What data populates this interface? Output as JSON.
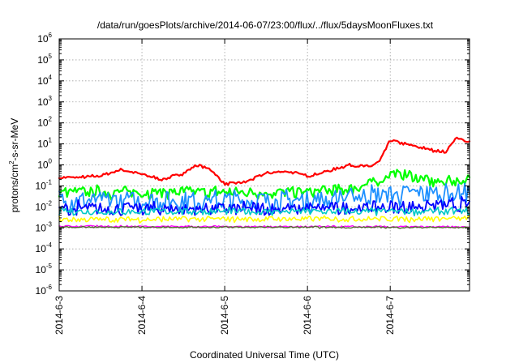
{
  "chart_data": {
    "type": "line",
    "title": "/data/run/goesPlots/archive/2014-06-07/23:00/flux/../flux/5daysMoonFluxes.txt",
    "xlabel": "Coordinated Universal Time (UTC)",
    "ylabel": "protons/cm²-s-sr-MeV",
    "ylabel_parts": {
      "base": "protons/cm",
      "sup": "2",
      "rest": "-s-sr-MeV"
    },
    "x_scale": "time",
    "xlim": [
      "2014-06-03T00:00",
      "2014-06-07T23:00"
    ],
    "x_ticks": [
      "2014-6-3",
      "2014-6-4",
      "2014-6-5",
      "2014-6-6",
      "2014-6-7"
    ],
    "y_scale": "log",
    "ylim": [
      1e-06,
      1000000.0
    ],
    "y_ticks": [
      {
        "base": "10",
        "exp": "-6"
      },
      {
        "base": "10",
        "exp": "-5"
      },
      {
        "base": "10",
        "exp": "-4"
      },
      {
        "base": "10",
        "exp": "-3"
      },
      {
        "base": "10",
        "exp": "-2"
      },
      {
        "base": "10",
        "exp": "-1"
      },
      {
        "base": "10",
        "exp": "0"
      },
      {
        "base": "10",
        "exp": "1"
      },
      {
        "base": "10",
        "exp": "2"
      },
      {
        "base": "10",
        "exp": "3"
      },
      {
        "base": "10",
        "exp": "4"
      },
      {
        "base": "10",
        "exp": "5"
      },
      {
        "base": "10",
        "exp": "6"
      }
    ],
    "grid": true,
    "series": [
      {
        "color": "#ff0000",
        "noise": 0.12,
        "points": [
          [
            "2014-06-03T00:00",
            0.25
          ],
          [
            "2014-06-03T06:00",
            0.25
          ],
          [
            "2014-06-03T12:00",
            0.3
          ],
          [
            "2014-06-03T18:00",
            0.6
          ],
          [
            "2014-06-04T00:00",
            0.35
          ],
          [
            "2014-06-04T06:00",
            0.2
          ],
          [
            "2014-06-04T12:00",
            0.4
          ],
          [
            "2014-06-04T16:00",
            1.0
          ],
          [
            "2014-06-04T20:00",
            0.6
          ],
          [
            "2014-06-05T00:00",
            0.12
          ],
          [
            "2014-06-05T06:00",
            0.15
          ],
          [
            "2014-06-05T12:00",
            0.4
          ],
          [
            "2014-06-05T18:00",
            0.5
          ],
          [
            "2014-06-06T00:00",
            0.3
          ],
          [
            "2014-06-06T06:00",
            0.5
          ],
          [
            "2014-06-06T12:00",
            1.0
          ],
          [
            "2014-06-06T18:00",
            0.8
          ],
          [
            "2014-06-06T21:00",
            1.5
          ],
          [
            "2014-06-07T00:00",
            15
          ],
          [
            "2014-06-07T04:00",
            10
          ],
          [
            "2014-06-07T10:00",
            6
          ],
          [
            "2014-06-07T16:00",
            4
          ],
          [
            "2014-06-07T19:00",
            18
          ],
          [
            "2014-06-07T23:00",
            13
          ]
        ]
      },
      {
        "color": "#00ff00",
        "noise": 0.5,
        "points": [
          [
            "2014-06-03T00:00",
            0.05
          ],
          [
            "2014-06-04T00:00",
            0.05
          ],
          [
            "2014-06-05T00:00",
            0.05
          ],
          [
            "2014-06-06T00:00",
            0.05
          ],
          [
            "2014-06-06T12:00",
            0.07
          ],
          [
            "2014-06-06T20:00",
            0.15
          ],
          [
            "2014-06-07T00:00",
            0.4
          ],
          [
            "2014-06-07T06:00",
            0.3
          ],
          [
            "2014-06-07T12:00",
            0.15
          ],
          [
            "2014-06-07T23:00",
            0.2
          ]
        ]
      },
      {
        "color": "#1e90ff",
        "noise": 0.9,
        "points": [
          [
            "2014-06-03T00:00",
            0.02
          ],
          [
            "2014-06-05T00:00",
            0.02
          ],
          [
            "2014-06-06T00:00",
            0.02
          ],
          [
            "2014-06-06T18:00",
            0.035
          ],
          [
            "2014-06-07T23:00",
            0.05
          ]
        ]
      },
      {
        "color": "#0000ff",
        "noise": 0.6,
        "points": [
          [
            "2014-06-03T00:00",
            0.008
          ],
          [
            "2014-06-06T00:00",
            0.008
          ],
          [
            "2014-06-07T23:00",
            0.012
          ]
        ]
      },
      {
        "color": "#00c8c8",
        "noise": 0.3,
        "points": [
          [
            "2014-06-03T00:00",
            0.006
          ],
          [
            "2014-06-07T23:00",
            0.006
          ]
        ]
      },
      {
        "color": "#ffff00",
        "noise": 0.25,
        "points": [
          [
            "2014-06-03T00:00",
            0.0025
          ],
          [
            "2014-06-07T23:00",
            0.0028
          ]
        ]
      },
      {
        "color": "#ff00ff",
        "noise": 0.08,
        "points": [
          [
            "2014-06-03T00:00",
            0.0012
          ],
          [
            "2014-06-07T23:00",
            0.0011
          ]
        ]
      },
      {
        "color": "#556b2f",
        "noise": 0.07,
        "points": [
          [
            "2014-06-03T00:00",
            0.0011
          ],
          [
            "2014-06-07T23:00",
            0.00105
          ]
        ]
      }
    ]
  }
}
